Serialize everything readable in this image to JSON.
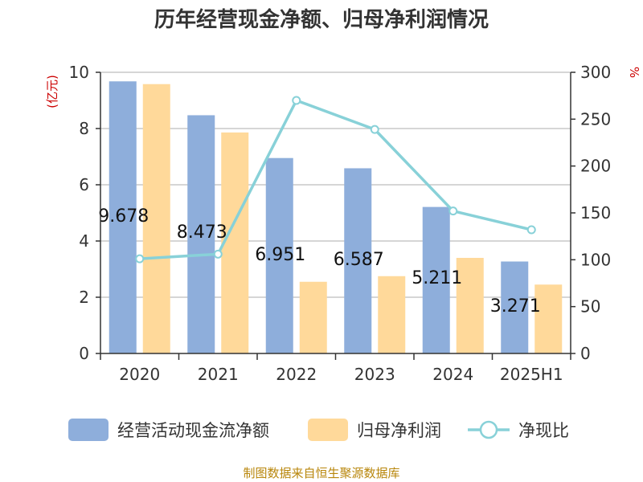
{
  "chart_data": {
    "type": "bar",
    "title": "历年经营现金净额、归母净利润情况",
    "categories": [
      "2020",
      "2021",
      "2022",
      "2023",
      "2024",
      "2025H1"
    ],
    "y_left": {
      "unit": "(亿元)",
      "lim": [
        0,
        10
      ],
      "ticks": [
        0,
        2,
        4,
        6,
        8,
        10
      ]
    },
    "y_right": {
      "unit": "%",
      "lim": [
        0,
        300
      ],
      "ticks": [
        0,
        50,
        100,
        150,
        200,
        250,
        300
      ]
    },
    "series": [
      {
        "name": "经营活动现金流净额",
        "kind": "bar",
        "axis": "left",
        "color": "#8eaedb",
        "values": [
          9.678,
          8.473,
          6.951,
          6.587,
          5.211,
          3.271
        ],
        "labels": [
          "9.678",
          "8.473",
          "6.951",
          "6.587",
          "5.211",
          "3.271"
        ]
      },
      {
        "name": "归母净利润",
        "kind": "bar",
        "axis": "left",
        "color": "#ffd99a",
        "values": [
          9.58,
          7.86,
          2.55,
          2.75,
          3.4,
          2.45
        ]
      },
      {
        "name": "净现比",
        "kind": "line",
        "axis": "right",
        "color": "#88d1d8",
        "values": [
          101,
          106,
          270,
          239,
          152,
          132
        ]
      }
    ],
    "grid": true,
    "legend_position": "bottom",
    "source": "制图数据来自恒生聚源数据库"
  }
}
